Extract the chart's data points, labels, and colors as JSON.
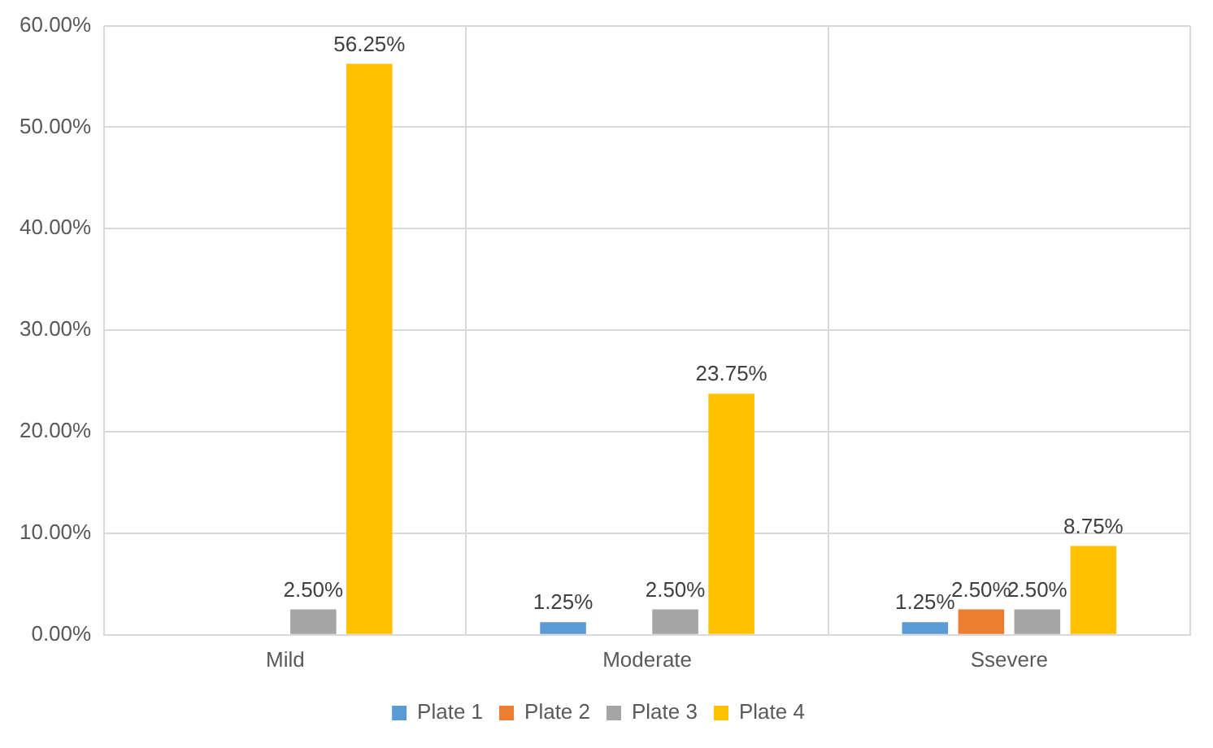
{
  "chart_data": {
    "type": "bar",
    "categories": [
      "Mild",
      "Moderate",
      "Ssevere"
    ],
    "series": [
      {
        "name": "Plate 1",
        "color": "#5b9bd5",
        "values": [
          null,
          1.25,
          1.25
        ],
        "value_labels": [
          null,
          "1.25%",
          "1.25%"
        ]
      },
      {
        "name": "Plate 2",
        "color": "#ed7d31",
        "values": [
          null,
          null,
          2.5
        ],
        "value_labels": [
          null,
          null,
          "2.50%"
        ]
      },
      {
        "name": "Plate 3",
        "color": "#a5a5a5",
        "values": [
          2.5,
          2.5,
          2.5
        ],
        "value_labels": [
          "2.50%",
          "2.50%",
          "2.50%"
        ]
      },
      {
        "name": "Plate 4",
        "color": "#ffc000",
        "values": [
          56.25,
          23.75,
          8.75
        ],
        "value_labels": [
          "56.25%",
          "23.75%",
          "8.75%"
        ]
      }
    ],
    "ylim": [
      0,
      60
    ],
    "yticks": [
      {
        "value": 0,
        "label": "0.00%"
      },
      {
        "value": 10,
        "label": "10.00%"
      },
      {
        "value": 20,
        "label": "20.00%"
      },
      {
        "value": 30,
        "label": "30.00%"
      },
      {
        "value": 40,
        "label": "40.00%"
      },
      {
        "value": 50,
        "label": "50.00%"
      },
      {
        "value": 60,
        "label": "60.00%"
      }
    ],
    "grid": true,
    "legend": "bottom"
  }
}
